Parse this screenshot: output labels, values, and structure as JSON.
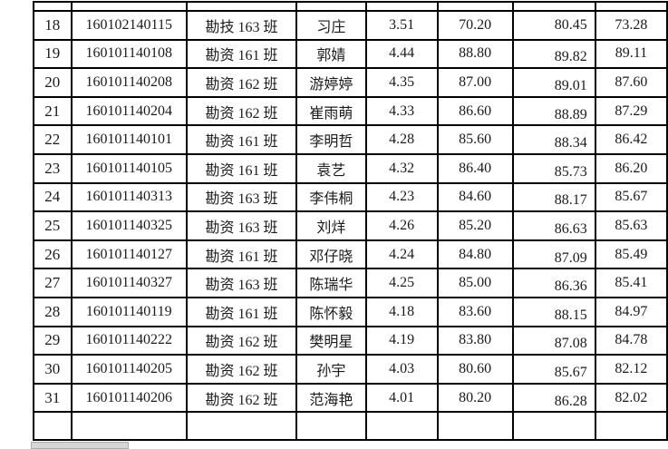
{
  "sheet": {
    "rows": [
      [
        "18",
        "160102140115",
        "勘技 163 班",
        "习庄",
        "3.51",
        "70.20",
        "80.45",
        "73.28"
      ],
      [
        "19",
        "160101140108",
        "勘资 161 班",
        "郭婧",
        "4.44",
        "88.80",
        "89.82",
        "89.11"
      ],
      [
        "20",
        "160101140208",
        "勘资 162 班",
        "游婷婷",
        "4.35",
        "87.00",
        "89.01",
        "87.60"
      ],
      [
        "21",
        "160101140204",
        "勘资 162 班",
        "崔雨萌",
        "4.33",
        "86.60",
        "88.89",
        "87.29"
      ],
      [
        "22",
        "160101140101",
        "勘资 161 班",
        "李明哲",
        "4.28",
        "85.60",
        "88.34",
        "86.42"
      ],
      [
        "23",
        "160101140105",
        "勘资 161 班",
        "袁艺",
        "4.32",
        "86.40",
        "85.73",
        "86.20"
      ],
      [
        "24",
        "160101140313",
        "勘资 163 班",
        "李伟桐",
        "4.23",
        "84.60",
        "88.17",
        "85.67"
      ],
      [
        "25",
        "160101140325",
        "勘资 163 班",
        "刘烊",
        "4.26",
        "85.20",
        "86.63",
        "85.63"
      ],
      [
        "26",
        "160101140127",
        "勘资 161 班",
        "邓仔晓",
        "4.24",
        "84.80",
        "87.09",
        "85.49"
      ],
      [
        "27",
        "160101140327",
        "勘资 163 班",
        "陈瑞华",
        "4.25",
        "85.00",
        "86.36",
        "85.41"
      ],
      [
        "28",
        "160101140119",
        "勘资 161 班",
        "陈怀毅",
        "4.18",
        "83.60",
        "88.15",
        "84.97"
      ],
      [
        "29",
        "160101140222",
        "勘资 162 班",
        "樊明星",
        "4.19",
        "83.80",
        "87.08",
        "84.78"
      ],
      [
        "30",
        "160101140205",
        "勘资 162 班",
        "孙宇",
        "4.03",
        "80.60",
        "85.67",
        "82.12"
      ],
      [
        "31",
        "160101140206",
        "勘资 162 班",
        "范海艳",
        "4.01",
        "80.20",
        "86.28",
        "82.02"
      ]
    ]
  },
  "colors": {
    "border": "#000000",
    "text": "#1b1b1b",
    "scrollbar": "#d6d6d6"
  }
}
